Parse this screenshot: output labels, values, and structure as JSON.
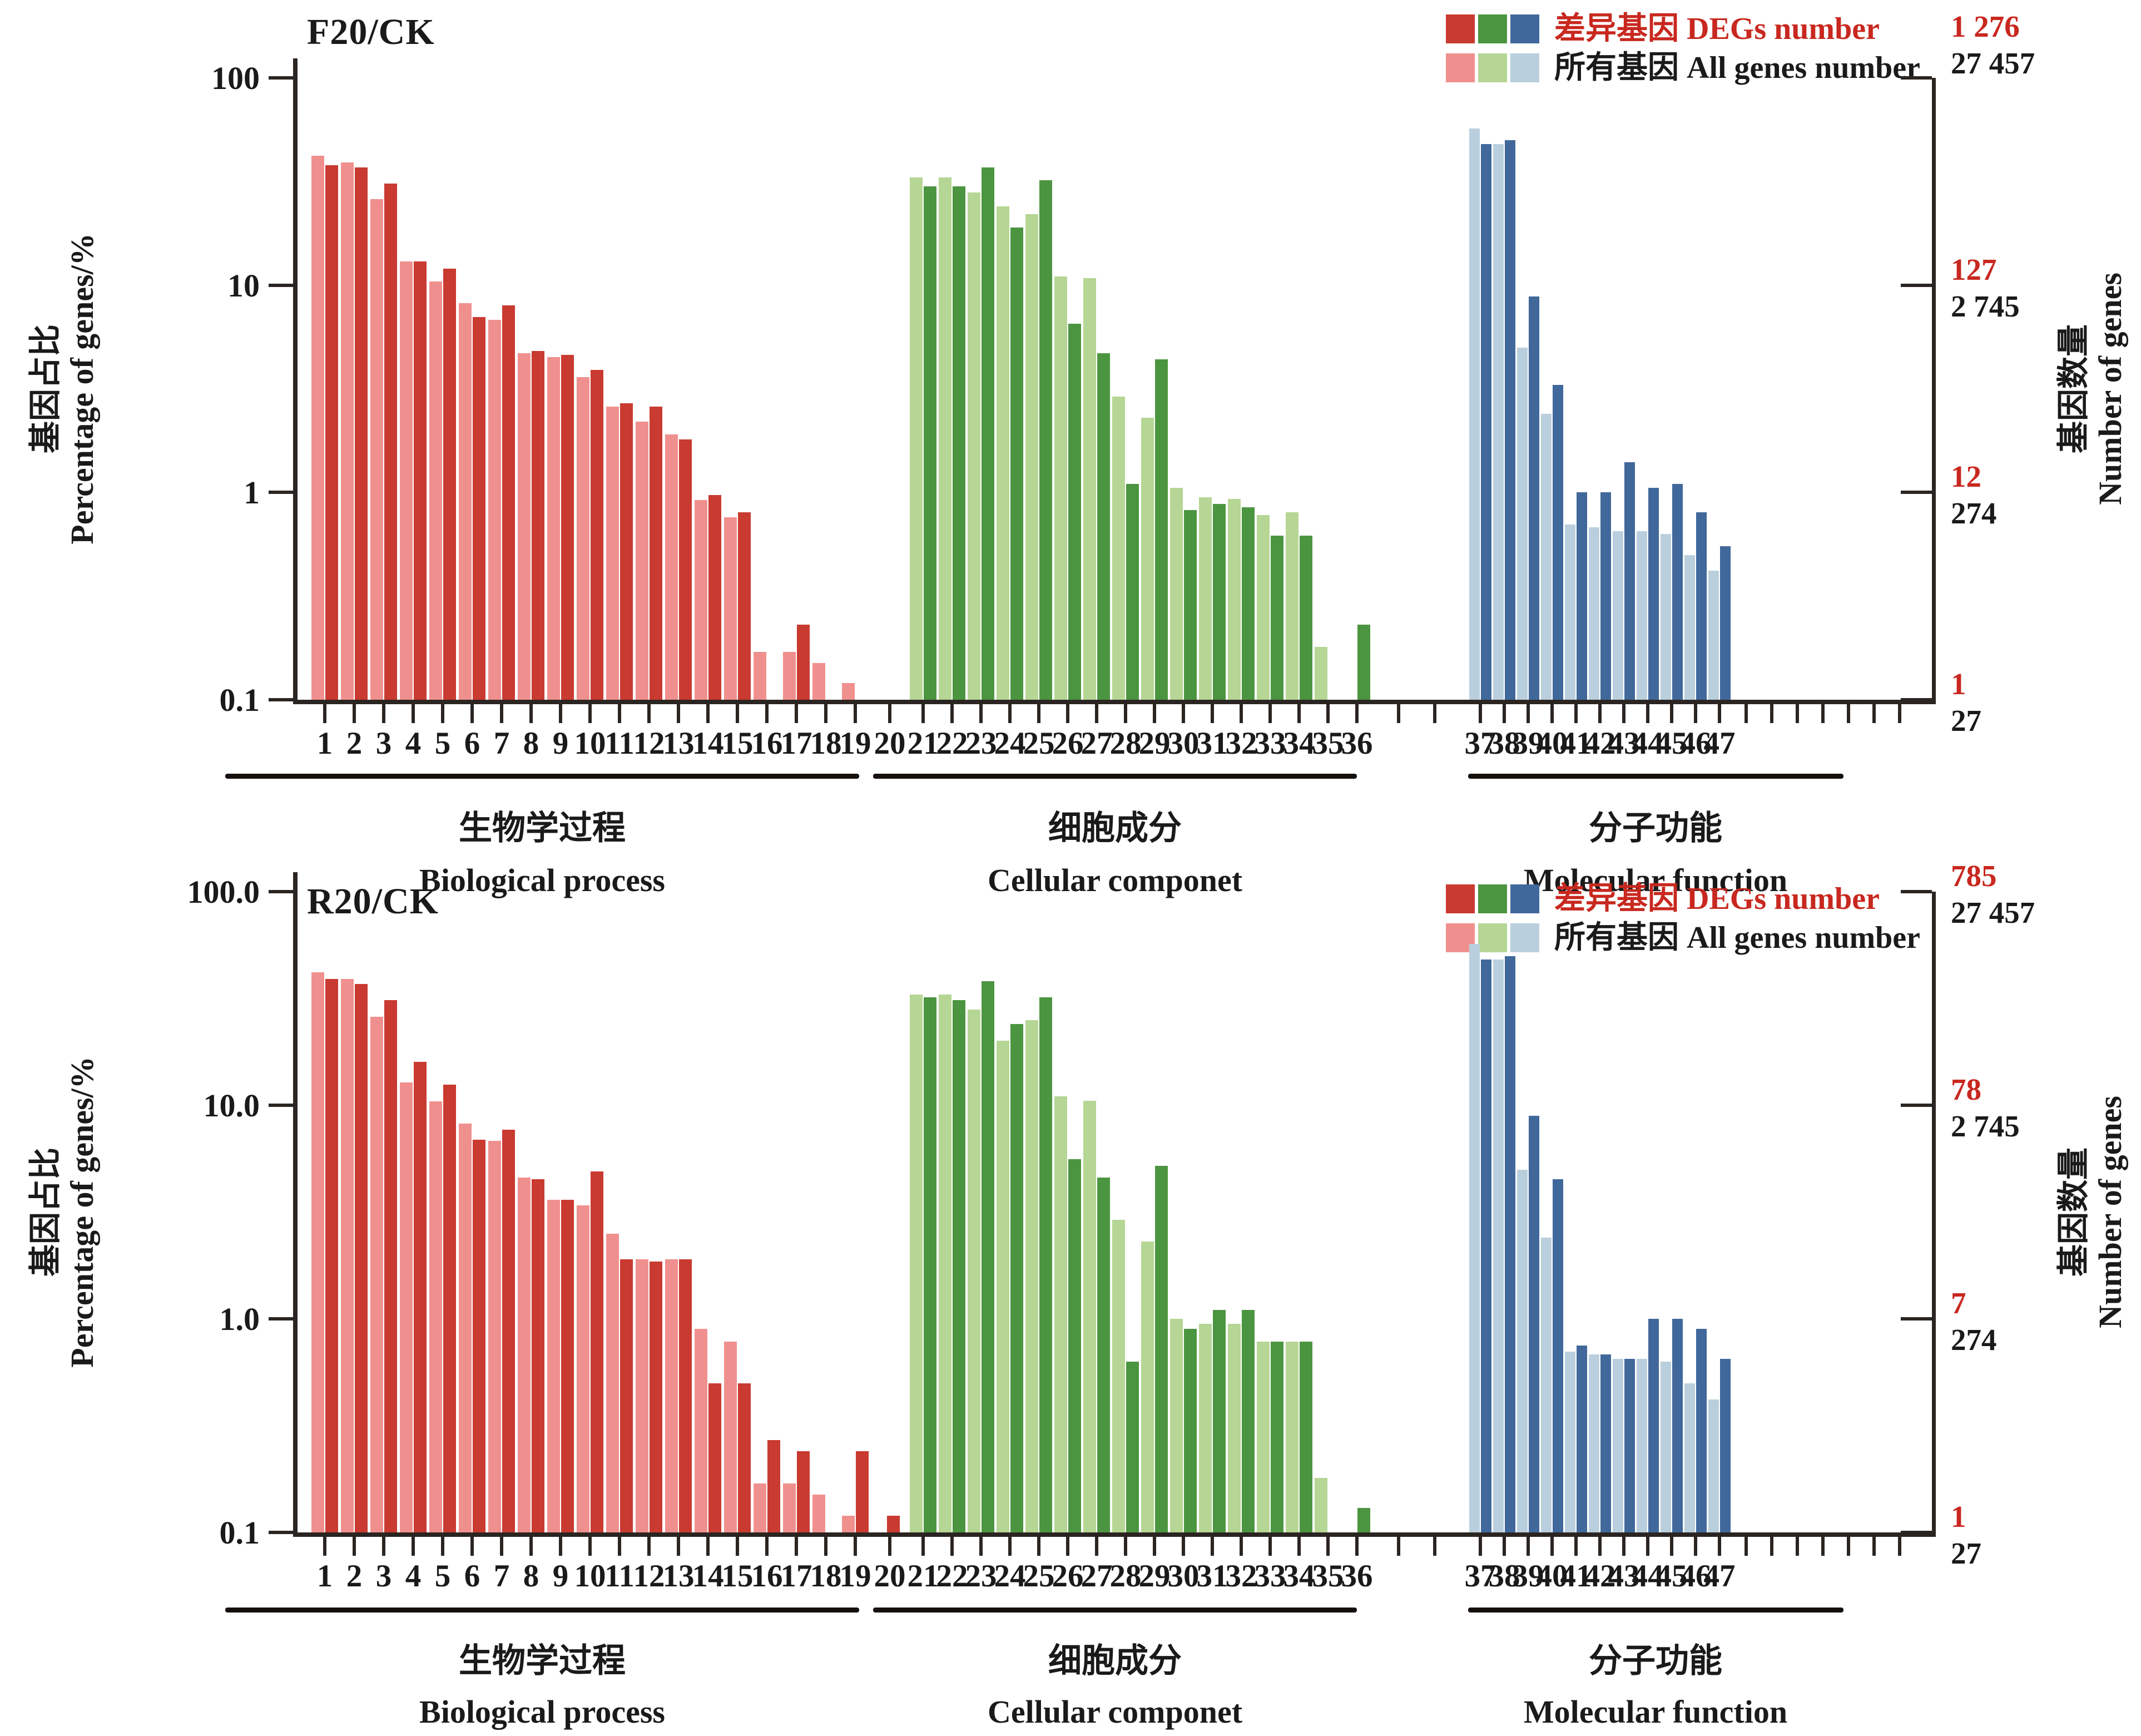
{
  "figure": {
    "background": "#ffffff",
    "y_axis_label": {
      "zh": "基因占比",
      "en": "Percentage of genes/%"
    },
    "right_axis_label": {
      "zh": "基因数量",
      "en": "Number of genes"
    },
    "legend": {
      "deg": "差异基因 DEGs number",
      "all": "所有基因 All genes number"
    },
    "colors": {
      "deg_text": "#c8281f",
      "bp_all": "#f0908e",
      "bp_deg": "#c93a31",
      "cc_all": "#b5d694",
      "cc_deg": "#4c9540",
      "mf_all": "#bacfdd",
      "mf_deg": "#41689b",
      "axis": "#2b2522"
    },
    "categories": {
      "bp": {
        "zh": "生物学过程",
        "en": "Biological process"
      },
      "cc": {
        "zh": "细胞成分",
        "en": "Cellular componet"
      },
      "mf": {
        "zh": "分子功能",
        "en": "Molecular function"
      }
    }
  },
  "chart_data": [
    {
      "type": "bar",
      "title": "F20/CK",
      "y_scale": "log",
      "ylim": [
        0.1,
        100
      ],
      "ylabel": "基因占比 Percentage of genes/%",
      "ylabel_right": "基因数量 Number of genes",
      "y_ticks": [
        "100",
        "10",
        "1",
        "0.1"
      ],
      "right_ticks": [
        {
          "deg": "1 276",
          "all": "27 457"
        },
        {
          "deg": "127",
          "all": "2 745"
        },
        {
          "deg": "12",
          "all": "274"
        },
        {
          "deg": "1",
          "all": "27"
        }
      ],
      "legend": [
        "差异基因 DEGs number",
        "所有基因 All genes number"
      ],
      "groups": {
        "bp": {
          "label": "生物学过程 Biological process",
          "x": [
            1,
            2,
            3,
            4,
            5,
            6,
            7,
            8,
            9,
            10,
            11,
            12,
            13,
            14,
            15,
            16,
            17,
            18,
            19,
            20
          ],
          "all": [
            42,
            39,
            26,
            13,
            10.4,
            8.2,
            6.8,
            4.7,
            4.5,
            3.6,
            2.6,
            2.2,
            1.9,
            0.92,
            0.76,
            0.17,
            0.17,
            0.15,
            0.12,
            null
          ],
          "deg": [
            38,
            37,
            31,
            13,
            12,
            7,
            8,
            4.8,
            4.6,
            3.9,
            2.7,
            2.6,
            1.8,
            0.97,
            0.8,
            null,
            0.23,
            null,
            null,
            null
          ]
        },
        "cc": {
          "label": "细胞成分 Cellular componet",
          "x": [
            21,
            22,
            23,
            24,
            25,
            26,
            27,
            28,
            29,
            30,
            31,
            32,
            33,
            34,
            35,
            36
          ],
          "all": [
            33,
            33,
            28,
            24,
            22,
            11,
            10.8,
            2.9,
            2.3,
            1.05,
            0.95,
            0.93,
            0.78,
            0.8,
            0.18,
            null
          ],
          "deg": [
            30,
            30,
            37,
            19,
            32,
            6.5,
            4.7,
            1.1,
            4.4,
            0.82,
            0.88,
            0.85,
            0.62,
            0.62,
            null,
            0.23
          ]
        },
        "mf": {
          "label": "分子功能 Molecular function",
          "x": [
            37,
            38,
            39,
            40,
            41,
            42,
            43,
            44,
            45,
            46,
            47
          ],
          "all": [
            57,
            48,
            5,
            2.4,
            0.7,
            0.68,
            0.65,
            0.65,
            0.63,
            0.5,
            0.42
          ],
          "deg": [
            48,
            50,
            8.8,
            3.3,
            1.0,
            1.0,
            1.4,
            1.05,
            1.1,
            0.8,
            0.55
          ]
        }
      }
    },
    {
      "type": "bar",
      "title": "R20/CK",
      "y_scale": "log",
      "ylim": [
        0.1,
        100
      ],
      "ylabel": "基因占比 Percentage of genes/%",
      "ylabel_right": "基因数量 Number of genes",
      "y_ticks": [
        "100.0",
        "10.0",
        "1.0",
        "0.1"
      ],
      "right_ticks": [
        {
          "deg": "785",
          "all": "27 457"
        },
        {
          "deg": "78",
          "all": "2 745"
        },
        {
          "deg": "7",
          "all": "274"
        },
        {
          "deg": "1",
          "all": "27"
        }
      ],
      "legend": [
        "差异基因 DEGs number",
        "所有基因 All genes number"
      ],
      "groups": {
        "bp": {
          "label": "生物学过程 Biological process",
          "x": [
            1,
            2,
            3,
            4,
            5,
            6,
            7,
            8,
            9,
            10,
            11,
            12,
            13,
            14,
            15,
            16,
            17,
            18,
            19,
            20
          ],
          "all": [
            42,
            39,
            26,
            12.8,
            10.4,
            8.2,
            6.8,
            4.6,
            3.6,
            3.4,
            2.5,
            1.9,
            1.9,
            0.9,
            0.78,
            0.17,
            0.17,
            0.15,
            0.12,
            null
          ],
          "deg": [
            39,
            37,
            31,
            16,
            12.5,
            6.9,
            7.7,
            4.5,
            3.6,
            4.9,
            1.9,
            1.85,
            1.9,
            0.5,
            0.5,
            0.27,
            0.24,
            null,
            0.24,
            0.12
          ]
        },
        "cc": {
          "label": "细胞成分 Cellular componet",
          "x": [
            21,
            22,
            23,
            24,
            25,
            26,
            27,
            28,
            29,
            30,
            31,
            32,
            33,
            34,
            35,
            36
          ],
          "all": [
            33,
            33,
            28,
            20,
            25,
            11,
            10.5,
            2.9,
            2.3,
            1.0,
            0.95,
            0.95,
            0.78,
            0.78,
            0.18,
            null
          ],
          "deg": [
            32,
            31,
            38,
            24,
            32,
            5.6,
            4.6,
            0.63,
            5.2,
            0.9,
            1.1,
            1.1,
            0.78,
            0.78,
            null,
            0.13
          ]
        },
        "mf": {
          "label": "分子功能 Molecular function",
          "x": [
            37,
            38,
            39,
            40,
            41,
            42,
            43,
            44,
            45,
            46,
            47
          ],
          "all": [
            57,
            48,
            5,
            2.4,
            0.7,
            0.68,
            0.65,
            0.65,
            0.63,
            0.5,
            0.42
          ],
          "deg": [
            48,
            50,
            8.9,
            4.5,
            0.75,
            0.68,
            0.65,
            1.0,
            1.0,
            0.9,
            0.65
          ]
        }
      }
    }
  ]
}
